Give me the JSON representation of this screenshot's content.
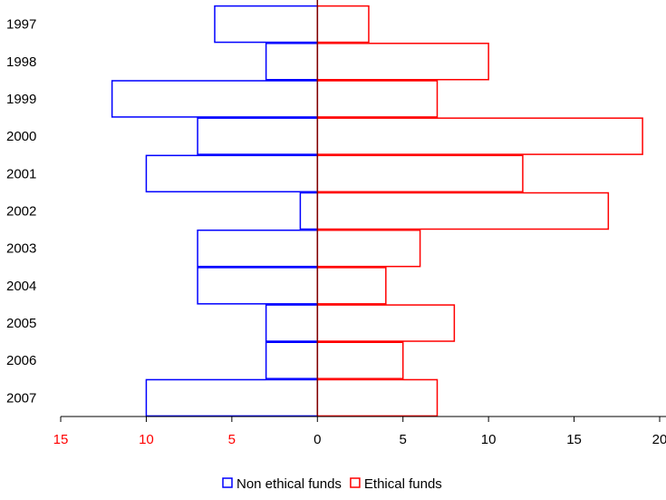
{
  "chart_data": {
    "type": "bar",
    "orientation": "horizontal",
    "layout": "back-to-back (population pyramid)",
    "categories": [
      "1997",
      "1998",
      "1999",
      "2000",
      "2001",
      "2002",
      "2003",
      "2004",
      "2005",
      "2006",
      "2007"
    ],
    "series": [
      {
        "name": "Non ethical funds",
        "side": "left",
        "color": "#0000ff",
        "values": [
          6,
          3,
          12,
          7,
          10,
          1,
          7,
          7,
          3,
          3,
          10
        ]
      },
      {
        "name": "Ethical funds",
        "side": "right",
        "color": "#ff0000",
        "values": [
          3,
          10,
          7,
          19,
          12,
          17,
          6,
          4,
          8,
          5,
          7
        ]
      }
    ],
    "x_ticks": [
      {
        "value": -15,
        "label": "15",
        "color": "#ff0000"
      },
      {
        "value": -10,
        "label": "10",
        "color": "#ff0000"
      },
      {
        "value": -5,
        "label": "5",
        "color": "#ff0000"
      },
      {
        "value": 0,
        "label": "0",
        "color": "#000000"
      },
      {
        "value": 5,
        "label": "5",
        "color": "#000000"
      },
      {
        "value": 10,
        "label": "10",
        "color": "#000000"
      },
      {
        "value": 15,
        "label": "15",
        "color": "#000000"
      },
      {
        "value": 20,
        "label": "20",
        "color": "#000000"
      }
    ],
    "xlim": [
      -15,
      20
    ],
    "title": "",
    "xlabel": "",
    "ylabel": "",
    "grid": false,
    "legend": {
      "placement": "bottom-center"
    },
    "center_line_color": "#800000",
    "axis_color": "#000000"
  }
}
